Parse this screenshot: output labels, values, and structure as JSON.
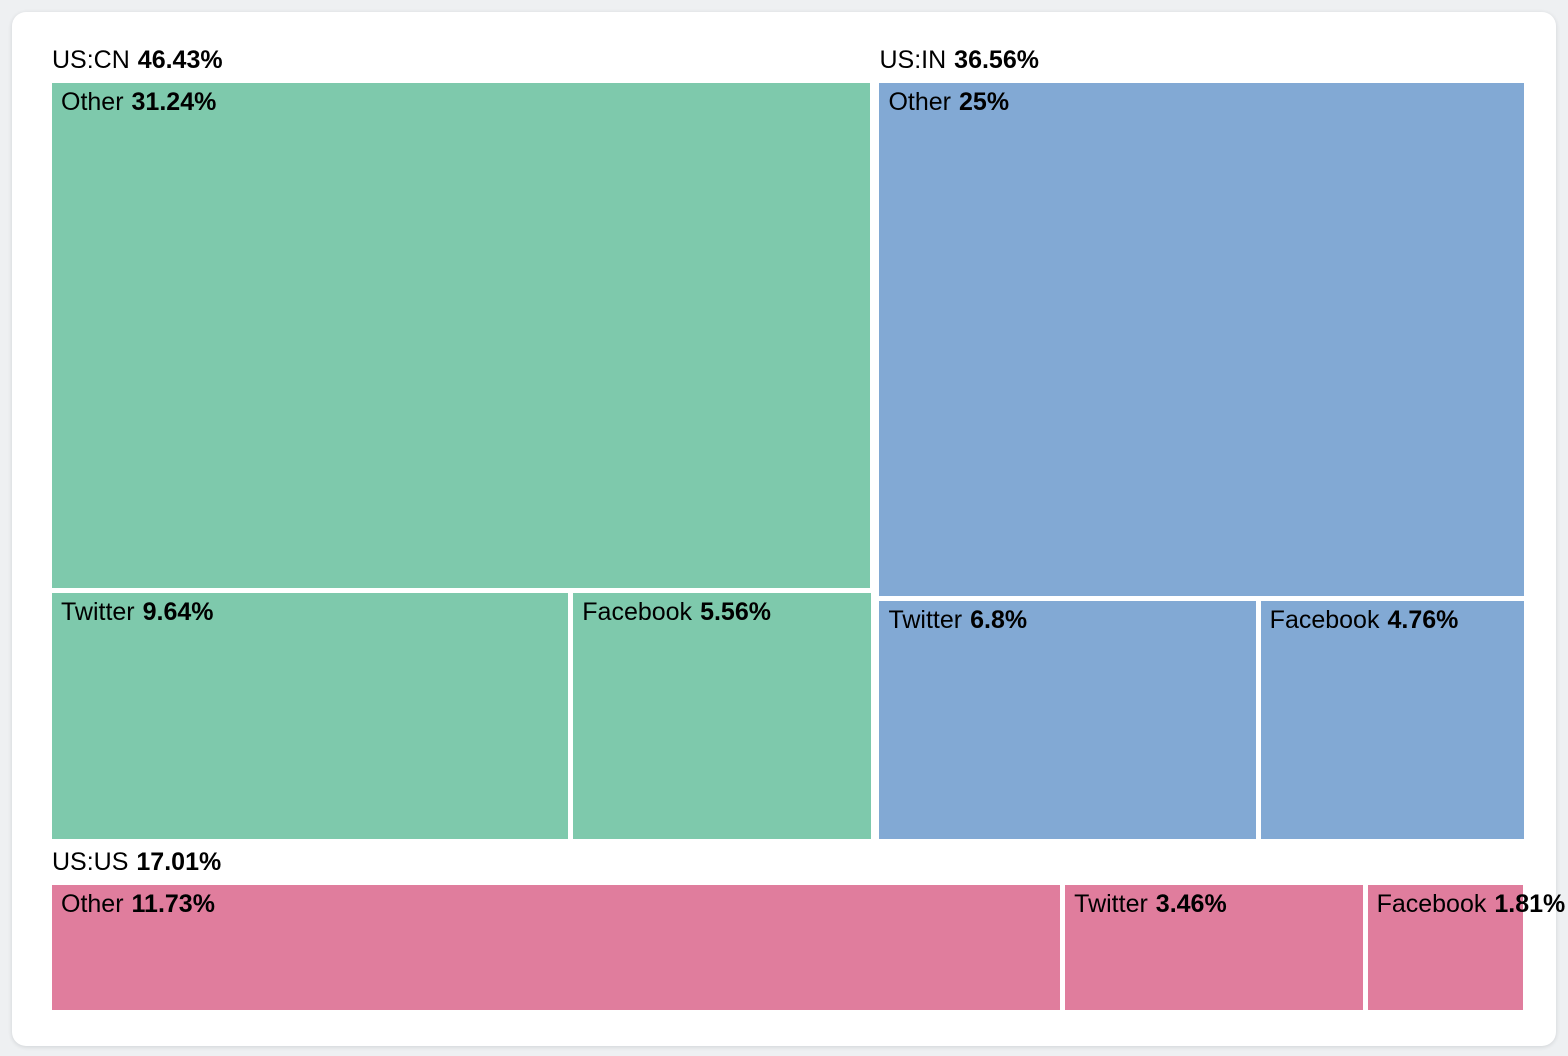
{
  "page": {
    "background_color": "#eef0f2",
    "card_color": "#ffffff"
  },
  "chart_data": {
    "type": "treemap",
    "title": "",
    "unit": "%",
    "legend_position": "none",
    "grid": false,
    "layout_rows": [
      [
        0,
        1
      ],
      [
        2
      ]
    ],
    "groups": [
      {
        "name": "US:CN",
        "value": 46.43,
        "label": "46.43%",
        "color": "#7ec9ac",
        "layout": "stacked",
        "cells": [
          {
            "name": "Other",
            "value": 31.24,
            "label": "31.24%"
          },
          {
            "name": "Twitter",
            "value": 9.64,
            "label": "9.64%"
          },
          {
            "name": "Facebook",
            "value": 5.56,
            "label": "5.56%"
          }
        ]
      },
      {
        "name": "US:IN",
        "value": 36.56,
        "label": "36.56%",
        "color": "#82a9d4",
        "layout": "stacked",
        "cells": [
          {
            "name": "Other",
            "value": 25,
            "label": "25%"
          },
          {
            "name": "Twitter",
            "value": 6.8,
            "label": "6.8%"
          },
          {
            "name": "Facebook",
            "value": 4.76,
            "label": "4.76%"
          }
        ]
      },
      {
        "name": "US:US",
        "value": 17.01,
        "label": "17.01%",
        "color": "#e07d9d",
        "layout": "columns",
        "cells": [
          {
            "name": "Other",
            "value": 11.73,
            "label": "11.73%"
          },
          {
            "name": "Twitter",
            "value": 3.46,
            "label": "3.46%"
          },
          {
            "name": "Facebook",
            "value": 1.81,
            "label": "1.81%"
          }
        ]
      }
    ]
  }
}
